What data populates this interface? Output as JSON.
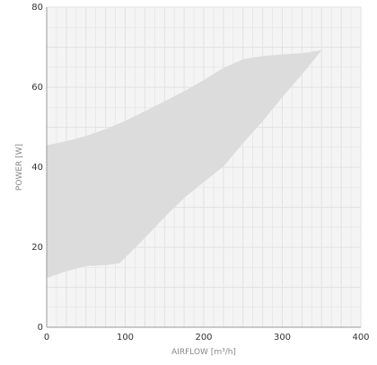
{
  "chart_data": {
    "type": "area",
    "xlabel": "AIRFLOW [m³/h]",
    "ylabel": "POWER [W]",
    "xlim": [
      0,
      400
    ],
    "ylim": [
      0,
      80
    ],
    "x_ticks": [
      "0",
      "100",
      "200",
      "300",
      "400"
    ],
    "y_ticks": [
      "0",
      "20",
      "40",
      "60",
      "80"
    ],
    "grid": true,
    "upper_boundary": {
      "x": [
        0,
        25,
        50,
        75,
        100,
        125,
        150,
        175,
        200,
        225,
        250,
        275,
        300,
        325,
        350
      ],
      "y": [
        45.5,
        46.5,
        47.8,
        49.5,
        51.6,
        54.0,
        56.5,
        59.0,
        61.8,
        64.8,
        67.0,
        67.8,
        68.2,
        68.5,
        69.2
      ]
    },
    "lower_boundary": {
      "x": [
        0,
        25,
        50,
        75,
        93,
        125,
        150,
        175,
        200,
        225,
        250,
        275,
        300,
        325,
        350
      ],
      "y": [
        12.3,
        14.0,
        15.3,
        15.5,
        16.0,
        22.3,
        27.5,
        32.3,
        36.3,
        40.2,
        46.0,
        51.5,
        57.5,
        63.2,
        69.2
      ]
    },
    "colors": {
      "fill": "#dcdcdc",
      "plot_background": "#f4f4f4",
      "grid": "#e2e2e2",
      "axis": "#999999"
    }
  }
}
